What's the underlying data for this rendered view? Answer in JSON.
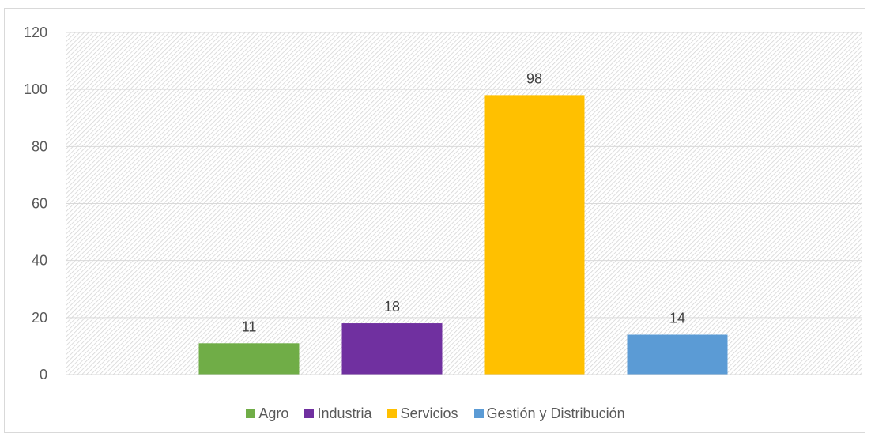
{
  "chart_data": {
    "type": "bar",
    "categories": [
      "Agro",
      "Industria",
      "Servicios",
      "Gestión y Distribución"
    ],
    "values": [
      11,
      18,
      98,
      14
    ],
    "colors": [
      "#70ad47",
      "#7030a0",
      "#ffc000",
      "#5b9bd5"
    ],
    "data_labels": [
      "11",
      "18",
      "98",
      "14"
    ],
    "ylim": [
      0,
      120
    ],
    "yticks": [
      "0",
      "20",
      "40",
      "60",
      "80",
      "100",
      "120"
    ],
    "grid": true,
    "legend_position": "bottom",
    "plot_background": "hatched light gray"
  }
}
